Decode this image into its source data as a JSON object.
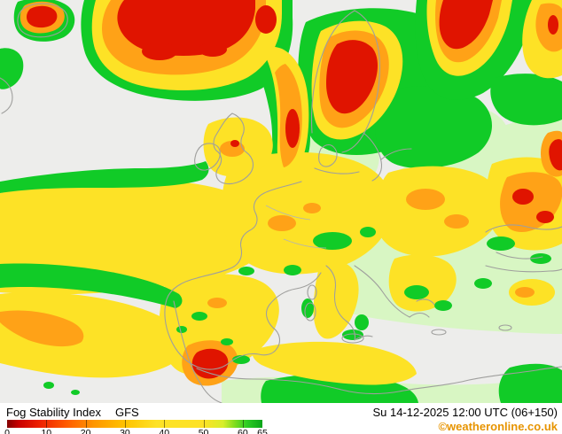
{
  "map": {
    "name": "fog-stability-index-europe",
    "palette": {
      "ocean": "#ededeb",
      "landPale": "#d8f6c3",
      "green": "#11cb27",
      "yellow": "#fde226",
      "orange": "#ffa217",
      "red": "#e01400",
      "coast": "#9f9f9d"
    }
  },
  "footer": {
    "title": "Fog Stability Index",
    "model": "GFS",
    "datetime": "Su 14-12-2025 12:00 UTC (06+150)",
    "copyright": "©weatheronline.co.uk",
    "copyright_color": "#e79400",
    "legend": {
      "min": 0,
      "max": 65,
      "ticks": [
        0,
        10,
        20,
        30,
        40,
        50,
        60,
        65
      ],
      "stops": [
        {
          "value": 0,
          "color": "#840000"
        },
        {
          "value": 3,
          "color": "#c80000"
        },
        {
          "value": 8,
          "color": "#ec1e00"
        },
        {
          "value": 15,
          "color": "#ff5a00"
        },
        {
          "value": 22,
          "color": "#ff9600"
        },
        {
          "value": 30,
          "color": "#ffc300"
        },
        {
          "value": 38,
          "color": "#fde226"
        },
        {
          "value": 50,
          "color": "#fde226"
        },
        {
          "value": 55,
          "color": "#d7ee2a"
        },
        {
          "value": 58,
          "color": "#7fdc1f"
        },
        {
          "value": 61,
          "color": "#2ecd24"
        },
        {
          "value": 65,
          "color": "#0aa51a"
        }
      ]
    }
  }
}
